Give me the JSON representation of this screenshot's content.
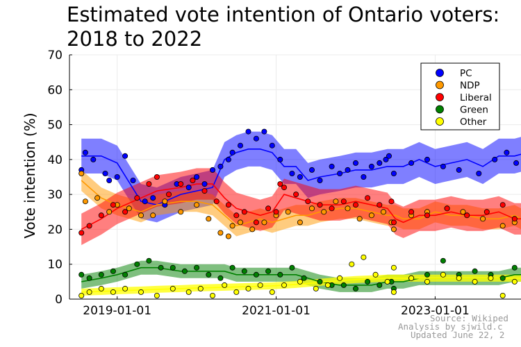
{
  "chart_data": {
    "type": "scatter",
    "title_lines": [
      "Estimated vote intention of Ontario voters:",
      "2018 to 2022"
    ],
    "ylabel": "Vote intention (%)",
    "xlabel": "",
    "ylim": [
      0,
      70
    ],
    "yticks": [
      0,
      10,
      20,
      30,
      40,
      50,
      60,
      70
    ],
    "xlim": [
      2018.4,
      2024.08
    ],
    "xticks": [
      {
        "label": "2019-01-01",
        "value": 2019.0
      },
      {
        "label": "2021-01-01",
        "value": 2021.0
      },
      {
        "label": "2023-01-01",
        "value": 2023.0
      }
    ],
    "grid": true,
    "legend_position": "top-right",
    "annotation_lines": [
      "Source: Wikiped",
      "Analysis by sjwild.c",
      "Updated June 22, 2"
    ],
    "series": [
      {
        "name": "PC",
        "color": "#0000ff",
        "trend_x": [
          2018.55,
          2018.8,
          2019.0,
          2019.3,
          2019.5,
          2019.8,
          2020.0,
          2020.2,
          2020.35,
          2020.5,
          2020.65,
          2020.8,
          2020.95,
          2021.1,
          2021.25,
          2021.4,
          2021.55,
          2021.8,
          2022.0,
          2022.2,
          2022.4,
          2022.5,
          2022.6,
          2022.8,
          2023.0,
          2023.2,
          2023.4,
          2023.6,
          2023.8,
          2024.0,
          2024.08
        ],
        "trend_y": [
          41,
          41,
          39,
          28,
          27,
          30,
          31,
          32,
          40,
          42,
          43,
          43,
          42,
          38,
          38,
          34,
          35,
          36,
          37,
          37,
          38,
          38,
          38,
          40,
          38,
          39,
          40,
          38,
          41,
          41,
          41.5
        ],
        "band_width": 5,
        "points": [
          [
            2018.55,
            37
          ],
          [
            2018.6,
            42
          ],
          [
            2018.7,
            40
          ],
          [
            2018.85,
            36
          ],
          [
            2018.9,
            34
          ],
          [
            2019.0,
            35
          ],
          [
            2019.1,
            41
          ],
          [
            2019.2,
            34
          ],
          [
            2019.35,
            28
          ],
          [
            2019.45,
            29
          ],
          [
            2019.6,
            27
          ],
          [
            2019.75,
            33
          ],
          [
            2019.9,
            32
          ],
          [
            2020.0,
            35
          ],
          [
            2020.1,
            33
          ],
          [
            2020.2,
            37
          ],
          [
            2020.3,
            38
          ],
          [
            2020.4,
            40
          ],
          [
            2020.45,
            42
          ],
          [
            2020.55,
            44
          ],
          [
            2020.65,
            48
          ],
          [
            2020.75,
            46
          ],
          [
            2020.85,
            48
          ],
          [
            2020.95,
            44
          ],
          [
            2021.05,
            40
          ],
          [
            2021.2,
            36
          ],
          [
            2021.3,
            35
          ],
          [
            2021.45,
            37
          ],
          [
            2021.55,
            34
          ],
          [
            2021.7,
            38
          ],
          [
            2021.8,
            36
          ],
          [
            2021.9,
            37
          ],
          [
            2022.0,
            39
          ],
          [
            2022.1,
            35
          ],
          [
            2022.2,
            38
          ],
          [
            2022.3,
            39
          ],
          [
            2022.38,
            40
          ],
          [
            2022.42,
            41
          ],
          [
            2022.48,
            36
          ],
          [
            2022.7,
            39
          ],
          [
            2022.9,
            40
          ],
          [
            2023.1,
            38
          ],
          [
            2023.3,
            37
          ],
          [
            2023.55,
            36
          ],
          [
            2023.75,
            40
          ],
          [
            2023.9,
            42
          ],
          [
            2024.02,
            39
          ]
        ]
      },
      {
        "name": "NDP",
        "color": "#ff9900",
        "trend_x": [
          2018.55,
          2018.8,
          2019.0,
          2019.3,
          2019.5,
          2019.8,
          2020.0,
          2020.2,
          2020.35,
          2020.5,
          2020.65,
          2020.8,
          2020.95,
          2021.1,
          2021.25,
          2021.4,
          2021.55,
          2021.8,
          2022.0,
          2022.2,
          2022.4,
          2022.5,
          2022.6,
          2022.8,
          2023.0,
          2023.2,
          2023.4,
          2023.6,
          2023.8,
          2024.0,
          2024.08
        ],
        "trend_y": [
          34,
          29,
          27,
          25,
          27,
          28,
          28,
          27,
          24,
          21,
          22,
          23,
          22,
          23,
          24,
          24,
          25,
          26,
          26,
          25,
          24,
          24,
          23,
          23,
          25,
          24,
          24,
          23,
          23,
          24,
          23
        ],
        "band_width": 3,
        "points": [
          [
            2018.55,
            36
          ],
          [
            2018.6,
            28
          ],
          [
            2018.75,
            29
          ],
          [
            2018.9,
            25
          ],
          [
            2019.0,
            27
          ],
          [
            2019.15,
            26
          ],
          [
            2019.3,
            24
          ],
          [
            2019.45,
            24
          ],
          [
            2019.6,
            28
          ],
          [
            2019.8,
            25
          ],
          [
            2020.0,
            27
          ],
          [
            2020.15,
            23
          ],
          [
            2020.3,
            19
          ],
          [
            2020.4,
            18
          ],
          [
            2020.45,
            21
          ],
          [
            2020.55,
            22
          ],
          [
            2020.7,
            20
          ],
          [
            2020.85,
            22
          ],
          [
            2021.0,
            24
          ],
          [
            2021.15,
            25
          ],
          [
            2021.3,
            22
          ],
          [
            2021.45,
            26
          ],
          [
            2021.6,
            25
          ],
          [
            2021.75,
            28
          ],
          [
            2021.9,
            26
          ],
          [
            2022.05,
            23
          ],
          [
            2022.2,
            24
          ],
          [
            2022.35,
            25
          ],
          [
            2022.45,
            22
          ],
          [
            2022.48,
            20
          ],
          [
            2022.7,
            24
          ],
          [
            2022.9,
            25
          ],
          [
            2023.15,
            26
          ],
          [
            2023.35,
            25
          ],
          [
            2023.6,
            23
          ],
          [
            2023.85,
            21
          ],
          [
            2024.0,
            22
          ]
        ]
      },
      {
        "name": "Liberal",
        "color": "#ff0000",
        "trend_x": [
          2018.55,
          2018.8,
          2019.0,
          2019.3,
          2019.5,
          2019.8,
          2020.0,
          2020.2,
          2020.35,
          2020.5,
          2020.65,
          2020.8,
          2020.95,
          2021.1,
          2021.25,
          2021.4,
          2021.55,
          2021.8,
          2022.0,
          2022.2,
          2022.4,
          2022.5,
          2022.6,
          2022.8,
          2023.0,
          2023.2,
          2023.4,
          2023.6,
          2023.8,
          2024.0,
          2024.08
        ],
        "trend_y": [
          20,
          23,
          26,
          29,
          31,
          32,
          33,
          33,
          29,
          26,
          25,
          24,
          25,
          30,
          29,
          28,
          27,
          27,
          28,
          27,
          26,
          23,
          22,
          24,
          24,
          25,
          24,
          24,
          25,
          23,
          23
        ],
        "band_width": 4.5,
        "points": [
          [
            2018.55,
            19
          ],
          [
            2018.65,
            21
          ],
          [
            2018.8,
            24
          ],
          [
            2018.95,
            27
          ],
          [
            2019.1,
            25
          ],
          [
            2019.25,
            29
          ],
          [
            2019.4,
            33
          ],
          [
            2019.5,
            35
          ],
          [
            2019.65,
            30
          ],
          [
            2019.8,
            33
          ],
          [
            2019.95,
            34
          ],
          [
            2020.1,
            31
          ],
          [
            2020.25,
            28
          ],
          [
            2020.4,
            27
          ],
          [
            2020.5,
            24
          ],
          [
            2020.6,
            25
          ],
          [
            2020.75,
            22
          ],
          [
            2020.9,
            26
          ],
          [
            2021.0,
            25
          ],
          [
            2021.05,
            33
          ],
          [
            2021.1,
            32
          ],
          [
            2021.25,
            30
          ],
          [
            2021.4,
            28
          ],
          [
            2021.55,
            27
          ],
          [
            2021.7,
            26
          ],
          [
            2021.85,
            28
          ],
          [
            2022.0,
            27
          ],
          [
            2022.15,
            29
          ],
          [
            2022.3,
            27
          ],
          [
            2022.45,
            28
          ],
          [
            2022.48,
            22
          ],
          [
            2022.7,
            25
          ],
          [
            2022.9,
            24
          ],
          [
            2023.15,
            26
          ],
          [
            2023.4,
            24
          ],
          [
            2023.65,
            25
          ],
          [
            2023.85,
            27
          ],
          [
            2024.0,
            23
          ]
        ]
      },
      {
        "name": "Green",
        "color": "#008000",
        "trend_x": [
          2018.55,
          2018.8,
          2019.0,
          2019.3,
          2019.5,
          2019.8,
          2020.0,
          2020.2,
          2020.35,
          2020.5,
          2020.65,
          2020.8,
          2020.95,
          2021.1,
          2021.25,
          2021.4,
          2021.55,
          2021.8,
          2022.0,
          2022.2,
          2022.4,
          2022.5,
          2022.6,
          2022.8,
          2023.0,
          2023.2,
          2023.4,
          2023.6,
          2023.8,
          2024.0,
          2024.08
        ],
        "trend_y": [
          5,
          6,
          7,
          9,
          9,
          8,
          8,
          8,
          8,
          7,
          7,
          7,
          7,
          7,
          7,
          6,
          5,
          4,
          4,
          4,
          5,
          5,
          5,
          6,
          6,
          6,
          6,
          6,
          6,
          7,
          7
        ],
        "band_width": 2,
        "points": [
          [
            2018.55,
            7
          ],
          [
            2018.65,
            6
          ],
          [
            2018.8,
            7
          ],
          [
            2018.95,
            8
          ],
          [
            2019.1,
            7
          ],
          [
            2019.25,
            10
          ],
          [
            2019.4,
            11
          ],
          [
            2019.55,
            9
          ],
          [
            2019.7,
            9
          ],
          [
            2019.85,
            8
          ],
          [
            2020.0,
            9
          ],
          [
            2020.15,
            7
          ],
          [
            2020.3,
            6
          ],
          [
            2020.45,
            9
          ],
          [
            2020.6,
            8
          ],
          [
            2020.75,
            7
          ],
          [
            2020.9,
            8
          ],
          [
            2021.05,
            7
          ],
          [
            2021.2,
            9
          ],
          [
            2021.35,
            6
          ],
          [
            2021.55,
            5
          ],
          [
            2021.7,
            4
          ],
          [
            2021.85,
            4
          ],
          [
            2022.0,
            3
          ],
          [
            2022.15,
            5
          ],
          [
            2022.3,
            4
          ],
          [
            2022.45,
            5
          ],
          [
            2022.48,
            3
          ],
          [
            2022.7,
            6
          ],
          [
            2022.9,
            7
          ],
          [
            2023.1,
            11
          ],
          [
            2023.3,
            7
          ],
          [
            2023.5,
            8
          ],
          [
            2023.7,
            7
          ],
          [
            2023.85,
            6
          ],
          [
            2024.0,
            9
          ]
        ]
      },
      {
        "name": "Other",
        "color": "#ffff00",
        "trend_x": [
          2018.55,
          2018.8,
          2019.0,
          2019.3,
          2019.5,
          2019.8,
          2020.0,
          2020.2,
          2020.35,
          2020.5,
          2020.65,
          2020.8,
          2020.95,
          2021.1,
          2021.25,
          2021.4,
          2021.55,
          2021.8,
          2022.0,
          2022.2,
          2022.4,
          2022.5,
          2022.6,
          2022.8,
          2023.0,
          2023.2,
          2023.4,
          2023.6,
          2023.8,
          2024.0,
          2024.08
        ],
        "trend_y": [
          2,
          2.2,
          2.4,
          2.6,
          2.8,
          3,
          3.2,
          3.3,
          3.4,
          3.5,
          3.6,
          3.7,
          3.8,
          4,
          4.2,
          4.5,
          4.8,
          5.3,
          5.6,
          5.8,
          6,
          6,
          6,
          6,
          6,
          6,
          6,
          6,
          6,
          6,
          6
        ],
        "band_width": 1,
        "points": [
          [
            2018.55,
            1
          ],
          [
            2018.65,
            2
          ],
          [
            2018.8,
            3
          ],
          [
            2018.95,
            2
          ],
          [
            2019.1,
            3
          ],
          [
            2019.3,
            2
          ],
          [
            2019.5,
            1
          ],
          [
            2019.7,
            3
          ],
          [
            2019.9,
            2
          ],
          [
            2020.05,
            3
          ],
          [
            2020.2,
            1
          ],
          [
            2020.35,
            4
          ],
          [
            2020.5,
            2
          ],
          [
            2020.65,
            3
          ],
          [
            2020.8,
            4
          ],
          [
            2020.95,
            2
          ],
          [
            2021.1,
            4
          ],
          [
            2021.3,
            5
          ],
          [
            2021.5,
            3
          ],
          [
            2021.65,
            4
          ],
          [
            2021.8,
            6
          ],
          [
            2021.95,
            10
          ],
          [
            2022.1,
            12
          ],
          [
            2022.25,
            7
          ],
          [
            2022.4,
            5
          ],
          [
            2022.48,
            9
          ],
          [
            2022.48,
            2
          ],
          [
            2022.7,
            6
          ],
          [
            2022.9,
            5
          ],
          [
            2023.1,
            7
          ],
          [
            2023.3,
            6
          ],
          [
            2023.5,
            5
          ],
          [
            2023.7,
            6
          ],
          [
            2023.85,
            1
          ],
          [
            2024.0,
            5
          ]
        ]
      }
    ]
  }
}
